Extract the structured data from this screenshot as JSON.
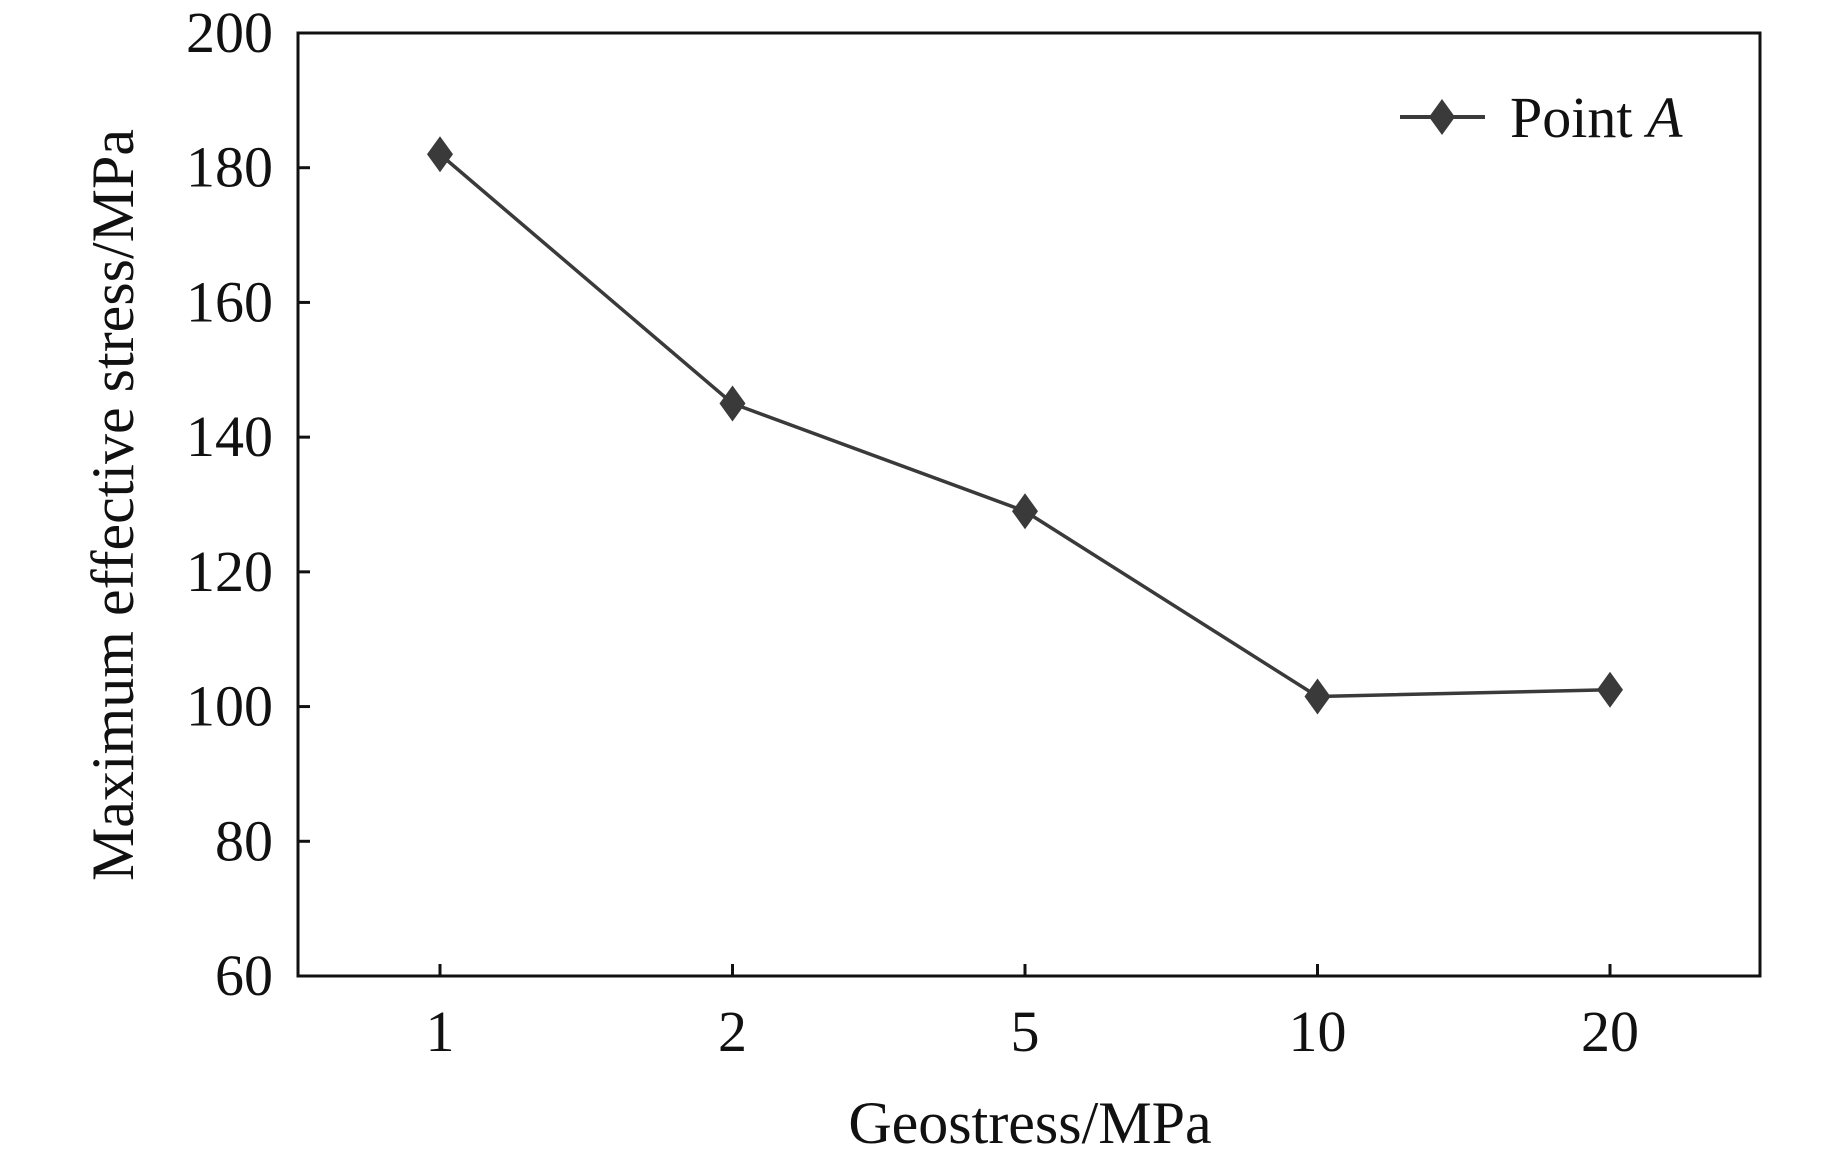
{
  "chart_data": {
    "type": "line",
    "xlabel": "Geostress/MPa",
    "ylabel": "Maximum effective stress/MPa",
    "categories": [
      "1",
      "2",
      "5",
      "10",
      "20"
    ],
    "ylim": [
      60,
      200
    ],
    "yticks": [
      60,
      80,
      100,
      120,
      140,
      160,
      180,
      200
    ],
    "grid": false,
    "legend_position": "top-right",
    "series": [
      {
        "name": "Point A",
        "name_prefix": "Point ",
        "name_italic": "A",
        "marker": "diamond",
        "color": "#3a3a3a",
        "values": [
          182,
          145,
          129,
          101.5,
          102.5
        ]
      }
    ]
  }
}
